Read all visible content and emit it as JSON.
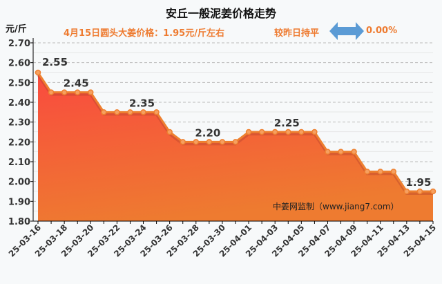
{
  "title": "安丘一般泥姜价格走势",
  "unit": "元/斤",
  "headline": "4月15日圆头大姜价格：1.95元/斤左右",
  "compare": "较昨日持平",
  "change": "0.00%",
  "watermark": "中姜网监制（www.jiang7.com）",
  "colors": {
    "line": "#ee8030",
    "fill_top": "#f94a3f",
    "fill_bottom": "#ee7b30",
    "arrow": "#5b9bd5"
  },
  "chart_data": {
    "type": "area",
    "title": "安丘一般泥姜价格走势",
    "ylabel": "元/斤",
    "ylim": [
      1.8,
      2.7
    ],
    "yticks": [
      "1.80",
      "1.90",
      "2.00",
      "2.10",
      "2.20",
      "2.30",
      "2.40",
      "2.50",
      "2.60",
      "2.70"
    ],
    "x": [
      "25-03-16",
      "25-03-17",
      "25-03-18",
      "25-03-19",
      "25-03-20",
      "25-03-21",
      "25-03-22",
      "25-03-23",
      "25-03-24",
      "25-03-25",
      "25-03-26",
      "25-03-27",
      "25-03-28",
      "25-03-29",
      "25-03-30",
      "25-03-31",
      "25-04-01",
      "25-04-02",
      "25-04-03",
      "25-04-04",
      "25-04-05",
      "25-04-06",
      "25-04-07",
      "25-04-08",
      "25-04-09",
      "25-04-10",
      "25-04-11",
      "25-04-12",
      "25-04-13",
      "25-04-14",
      "25-04-15"
    ],
    "values": [
      2.55,
      2.45,
      2.45,
      2.45,
      2.45,
      2.35,
      2.35,
      2.35,
      2.35,
      2.35,
      2.25,
      2.2,
      2.2,
      2.2,
      2.2,
      2.2,
      2.25,
      2.25,
      2.25,
      2.25,
      2.25,
      2.25,
      2.15,
      2.15,
      2.15,
      2.05,
      2.05,
      2.05,
      1.95,
      1.95,
      1.95
    ],
    "xtick_labels": [
      "25-03-16",
      "25-03-18",
      "25-03-20",
      "25-03-22",
      "25-03-24",
      "25-03-26",
      "25-03-28",
      "25-03-30",
      "25-04-01",
      "25-04-03",
      "25-04-05",
      "25-04-07",
      "25-04-09",
      "25-04-11",
      "25-04-13",
      "25-04-15"
    ],
    "annotations": [
      {
        "index": 0,
        "text": "2.55"
      },
      {
        "index": 3,
        "text": "2.45"
      },
      {
        "index": 8,
        "text": "2.35"
      },
      {
        "index": 13,
        "text": "2.20"
      },
      {
        "index": 19,
        "text": "2.25"
      },
      {
        "index": 29,
        "text": "1.95"
      }
    ],
    "grid": true
  }
}
